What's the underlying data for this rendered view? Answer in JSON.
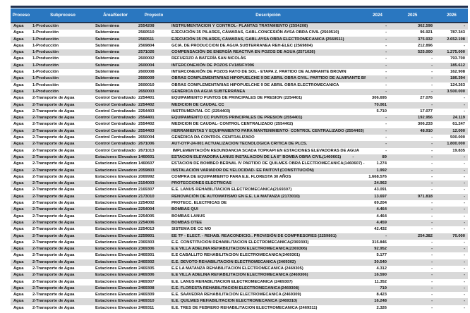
{
  "colors": {
    "header_bg": "#2a77c0",
    "header_text": "#ffffff",
    "stripe": "#d9d9d9",
    "top_border": "#1f3050"
  },
  "table": {
    "columns": [
      "Proceso",
      "Subproceso",
      "Área/Sector",
      "Proyecto",
      "Descripción",
      "2024",
      "2025",
      "2026"
    ],
    "rows": [
      [
        "Agua",
        "1-Producción",
        "Subterránea",
        "2554208",
        "INSTRUMENTACION Y CONTROL- PLANTAS TRATAMIENTO (2554208)",
        "-",
        "362.598",
        "-"
      ],
      [
        "Agua",
        "1-Producción",
        "Subterránea",
        "2560510",
        "EJECUCIÓN 35 PILARES, CÁMARAS, GABL.CONCESIÓN AYSA OBRA CIVIL (2560510)",
        "-",
        "96.921",
        "787.343"
      ],
      [
        "Agua",
        "1-Producción",
        "Subterránea",
        "2560511",
        "EJECUCIÓN 35 PILARES, CÁMARAS, GABL.AYSA OBRA ELECTROMECANICA (2560511)",
        "-",
        "375.932",
        "2.652.198"
      ],
      [
        "Agua",
        "1-Producción",
        "Subterránea",
        "2569804",
        "GCIA. DE PRODUCCION DE AGUA SUBTERRANEA REH-ELEC (2569804)",
        "-",
        "212.896",
        "-"
      ],
      [
        "Agua",
        "1-Producción",
        "Subterránea",
        "2571026",
        "COMPENSACIÓN DE ENERGÍA REACTIVA EN POZOS DE AGUA (2571026)",
        "-",
        "525.000",
        "1.275.000"
      ],
      [
        "Agua",
        "1-Producción",
        "Subterránea",
        "2600002",
        "REFUERZO A BATERÍA SAN NICOLÁS",
        "-",
        "-",
        "793.700"
      ],
      [
        "Agua",
        "1-Producción",
        "Subterránea",
        "2600004",
        "INTERCONEXIÓN DE POZOS FV185/FV096",
        "-",
        "-",
        "185.612"
      ],
      [
        "Agua",
        "1-Producción",
        "Subterránea",
        "2600008",
        "INTERCONEXIÓN DE POZOS RAYO DE SOL - ETAPA 2. PARTIDO DE ALMIRANTE BROWN",
        "-",
        "-",
        "162.908"
      ],
      [
        "Agua",
        "1-Producción",
        "Subterránea",
        "2600009",
        "OBRAS COMPLEMENTARIAS HIPOPUELCHE 9 DE ABRIL OBRA CIVIL. PARTIDO DE ALMIRANTE BROWN",
        "-",
        "-",
        "186.394"
      ],
      [
        "Agua",
        "1-Producción",
        "Subterránea",
        "2600010",
        "OBRAS COMPLEMENTARIAS HIPOPUELCHE 9 DE ABRIL OBRA ELECTROMECANICA",
        "-",
        "-",
        "124.263"
      ],
      [
        "Agua",
        "1-Producción",
        "Subterránea",
        "2650003",
        "GENÉRICA DA AGUA SUBTERRÁNEA",
        "-",
        "-",
        "3.500.000"
      ],
      [
        "Agua",
        "2-Transporte de Agua",
        "Control Centralizado",
        "2254401",
        "EQUIPAMIENTO PUNTOS DE PRINCIPALES DE PRESION (2254401)",
        "306.695",
        "27.076",
        "-"
      ],
      [
        "Agua",
        "2-Transporte de Agua",
        "Control Centralizado",
        "2254402",
        "MEDICION DE CAUDAL CC",
        "70.061",
        "-",
        "-"
      ],
      [
        "Agua",
        "2-Transporte de Agua",
        "Control Centralizado",
        "2254403",
        "INSTRUMENTAL CC (2254403)",
        "5.710",
        "17.077",
        "-"
      ],
      [
        "Agua",
        "2-Transporte de Agua",
        "Control Centralizado",
        "2554401",
        "EQUIPAMIENTO CC PUNTOS PRINCIPALES DE PRESION (2554401)",
        "-",
        "192.956",
        "24.119"
      ],
      [
        "Agua",
        "2-Transporte de Agua",
        "Control Centralizado",
        "2554402",
        "MEDICION DE CAUDAL- CONTROL CENTRALIZADO (2554402)",
        "-",
        "306.233",
        "61.247"
      ],
      [
        "Agua",
        "2-Transporte de Agua",
        "Control Centralizado",
        "2554403",
        "HERRAMIENTAS Y EQUIPAMIENTO PARA MANTENIMIENTO- CONTROL CENTRALIZADO (2554403)",
        "-",
        "48.910",
        "12.000"
      ],
      [
        "Agua",
        "2-Transporte de Agua",
        "Control Centralizado",
        "2650004",
        "GENÉRICA DA CONTROL CENTRALIZADO",
        "-",
        "-",
        "500.000"
      ],
      [
        "Agua",
        "2-Transporte de Agua",
        "Control Centralizado",
        "2671006",
        "AUT-OYP-24-001 ACTUALIZACION TECNOLOGICA CRITICA DE PLCS.",
        "-",
        "-",
        "1.800.000"
      ],
      [
        "Agua",
        "2-Transporte de Agua",
        "Control Centralizado",
        "2671013",
        " IMPLEMENTACIÓN REDUNDANCIA SCADA TOPKAPI EN ESTACIONES ELEVADORAS DE AGUA",
        "-",
        "-",
        "19.835"
      ],
      [
        "Agua",
        "2-Transporte de Agua",
        "Estaciones Elevadoras",
        "1460601",
        "ESTACION ELEVADORA LANUS INSTALACION DE LA 8\" BOMBA OBRA CIVIL(1460601)          -",
        "89",
        "-",
        "-"
      ],
      [
        "Agua",
        "2-Transporte de Agua",
        "Estaciones Elevadoras",
        "1460607",
        "ESTACION DE BOMBEO BERNAL IV PARTIDO DE QUILMES OBRA ELECTROMECANICA(1460607) -",
        "1.274",
        "-",
        "-"
      ],
      [
        "Agua",
        "2-Transporte de Agua",
        "Estaciones Elevadoras",
        "2059803",
        "INSTALACIÓN VARIADOR DE VELOCIDAD- EE PAITOVÍ (CONSTITUCIÓN)",
        "1.992",
        "-",
        "-"
      ],
      [
        "Agua",
        "2-Transporte de Agua",
        "Estaciones Elevadoras",
        "2069992",
        "COMPRA DE EQUIPAMIENTO PARA E.E. FLORESTA 30 AÑOS",
        "1.668.576",
        "-",
        "-"
      ],
      [
        "Agua",
        "2-Transporte de Agua",
        "Estaciones Elevadoras",
        "2154003",
        "PROTECCIONES ELECTRICAS",
        "24.962",
        "-",
        "-"
      ],
      [
        "Agua",
        "2-Transporte de Agua",
        "Estaciones Elevadoras",
        "2169307",
        "E.E. LANUS REHABILITACION ELECTROMECANICA(2169307)",
        "43.091",
        "-",
        "-"
      ],
      [
        "Agua",
        "2-Transporte de Agua",
        "Estaciones Elevadoras",
        "2173010",
        "RENOVACIÓN DE AUTOMATISMO EN E.E. LA MATANZA (2173010)",
        "13.697",
        "971.818",
        "-"
      ],
      [
        "Agua",
        "2-Transporte de Agua",
        "Estaciones Elevadoras",
        "2254002",
        "PROTECC. ELECTRICAS DE",
        "69.204",
        "-",
        "-"
      ],
      [
        "Agua",
        "2-Transporte de Agua",
        "Estaciones Elevadoras",
        "2254004",
        "BOMBAS QUI",
        "4.464",
        "-",
        "-"
      ],
      [
        "Agua",
        "2-Transporte de Agua",
        "Estaciones Elevadoras",
        "2254005",
        "BOMBAS LANUS",
        "4.464",
        "-",
        "-"
      ],
      [
        "Agua",
        "2-Transporte de Agua",
        "Estaciones Elevadoras",
        "2254006",
        "BOMBAS OTEE",
        "4.459",
        "-",
        "-"
      ],
      [
        "Agua",
        "2-Transporte de Agua",
        "Estaciones Elevadoras",
        "2254013",
        "SISTEMA DE CC MO",
        "42.432",
        "-",
        "-"
      ],
      [
        "Agua",
        "2-Transporte de Agua",
        "Estaciones Elevadoras",
        "2259801",
        "EE TF - ELECT. - REHAB. REACONDICIO.. PROVISIÓN DE COMPRESORES (2259801)",
        "-",
        "254.382",
        "70.000"
      ],
      [
        "Agua",
        "2-Transporte de Agua",
        "Estaciones Elevadoras",
        "2369303",
        "E.E. CONSTITUCION REHABILITACION ELECTROMECANICA(2369303)",
        "315.846",
        "-",
        "-"
      ],
      [
        "Agua",
        "2-Transporte de Agua",
        "Estaciones Elevadoras",
        "2369306",
        "E.E VILLA ADELINA REHABILITACION ELECTROMECANICA(2369306)",
        "92.952",
        "-",
        "-"
      ],
      [
        "Agua",
        "2-Transporte de Agua",
        "Estaciones Elevadoras",
        "2469301",
        "E.E CABALLITO REHABILITACION ELECTROMECANICA(2469301)",
        "5.177",
        "-",
        "-"
      ],
      [
        "Agua",
        "2-Transporte de Agua",
        "Estaciones Elevadoras",
        "2469302",
        "E.E. DEVOTO REHABILITACION ELECTROMECANICA (2469302)",
        "30.540",
        "-",
        "-"
      ],
      [
        "Agua",
        "2-Transporte de Agua",
        "Estaciones Elevadoras",
        "2469305",
        "E.E LA MATANZA REHABILITACION ELECTROMECANICA (2469305)",
        "4.312",
        "-",
        "-"
      ],
      [
        "Agua",
        "2-Transporte de Agua",
        "Estaciones Elevadoras",
        "2469306",
        "E.E VILLA ADELINA REHABILITACION ELECTROMECANICA (2469306)",
        "16.590",
        "-",
        "-"
      ],
      [
        "Agua",
        "2-Transporte de Agua",
        "Estaciones Elevadoras",
        "2469307",
        "E.E. LANUS REHABILITACION ELECTROMECANICA (2469307)",
        "11.352",
        "-",
        "-"
      ],
      [
        "Agua",
        "2-Transporte de Agua",
        "Estaciones Elevadoras",
        "2469308",
        "E.E. FLORESTA REHABILITACION ELECTROMECANICA(2469308)",
        "719",
        "-",
        "-"
      ],
      [
        "Agua",
        "2-Transporte de Agua",
        "Estaciones Elevadoras",
        "2469309",
        "E.E. SAAVEDRA REHABILITACION ELECTROMECANICA (2469309)",
        "8.423",
        "-",
        "-"
      ],
      [
        "Agua",
        "2-Transporte de Agua",
        "Estaciones Elevadoras",
        "2469310",
        "E.E. QUILMES REHABILITACION ELECTROMECANICA (2469310)",
        "16.248",
        "-",
        "-"
      ],
      [
        "Agua",
        "2-Transporte de Agua",
        "Estaciones Elevadoras",
        "2469311",
        "E.E. TRES DE FEBRERO REHABILITACION ELECTROMECANICA (2469311)",
        "2.326",
        "-",
        "-"
      ]
    ]
  }
}
